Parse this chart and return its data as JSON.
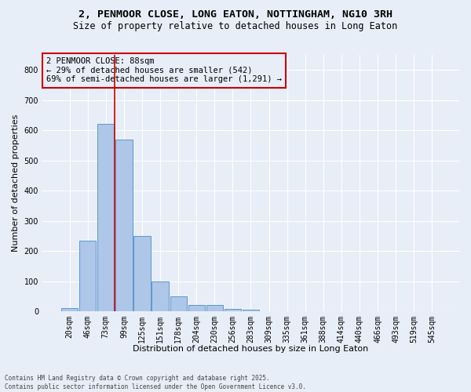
{
  "title1": "2, PENMOOR CLOSE, LONG EATON, NOTTINGHAM, NG10 3RH",
  "title2": "Size of property relative to detached houses in Long Eaton",
  "xlabel": "Distribution of detached houses by size in Long Eaton",
  "ylabel": "Number of detached properties",
  "footer1": "Contains HM Land Registry data © Crown copyright and database right 2025.",
  "footer2": "Contains public sector information licensed under the Open Government Licence v3.0.",
  "categories": [
    "20sqm",
    "46sqm",
    "73sqm",
    "99sqm",
    "125sqm",
    "151sqm",
    "178sqm",
    "204sqm",
    "230sqm",
    "256sqm",
    "283sqm",
    "309sqm",
    "335sqm",
    "361sqm",
    "388sqm",
    "414sqm",
    "440sqm",
    "466sqm",
    "493sqm",
    "519sqm",
    "545sqm"
  ],
  "values": [
    10,
    233,
    621,
    570,
    251,
    99,
    49,
    22,
    22,
    7,
    5,
    0,
    0,
    0,
    0,
    0,
    0,
    0,
    0,
    0,
    0
  ],
  "bar_color": "#aec6e8",
  "bar_edge_color": "#5b99cc",
  "background_color": "#e8eef8",
  "grid_color": "#ffffff",
  "vline_color": "#cc0000",
  "vline_x_index": 2.5,
  "annotation_title": "2 PENMOOR CLOSE: 88sqm",
  "annotation_line2": "← 29% of detached houses are smaller (542)",
  "annotation_line3": "69% of semi-detached houses are larger (1,291) →",
  "annotation_box_color": "#cc0000",
  "ylim": [
    0,
    850
  ],
  "yticks": [
    0,
    100,
    200,
    300,
    400,
    500,
    600,
    700,
    800
  ],
  "title1_fontsize": 9.5,
  "title2_fontsize": 8.5,
  "xlabel_fontsize": 8,
  "ylabel_fontsize": 8,
  "annotation_fontsize": 7.5,
  "tick_fontsize": 7,
  "footer_fontsize": 5.5
}
